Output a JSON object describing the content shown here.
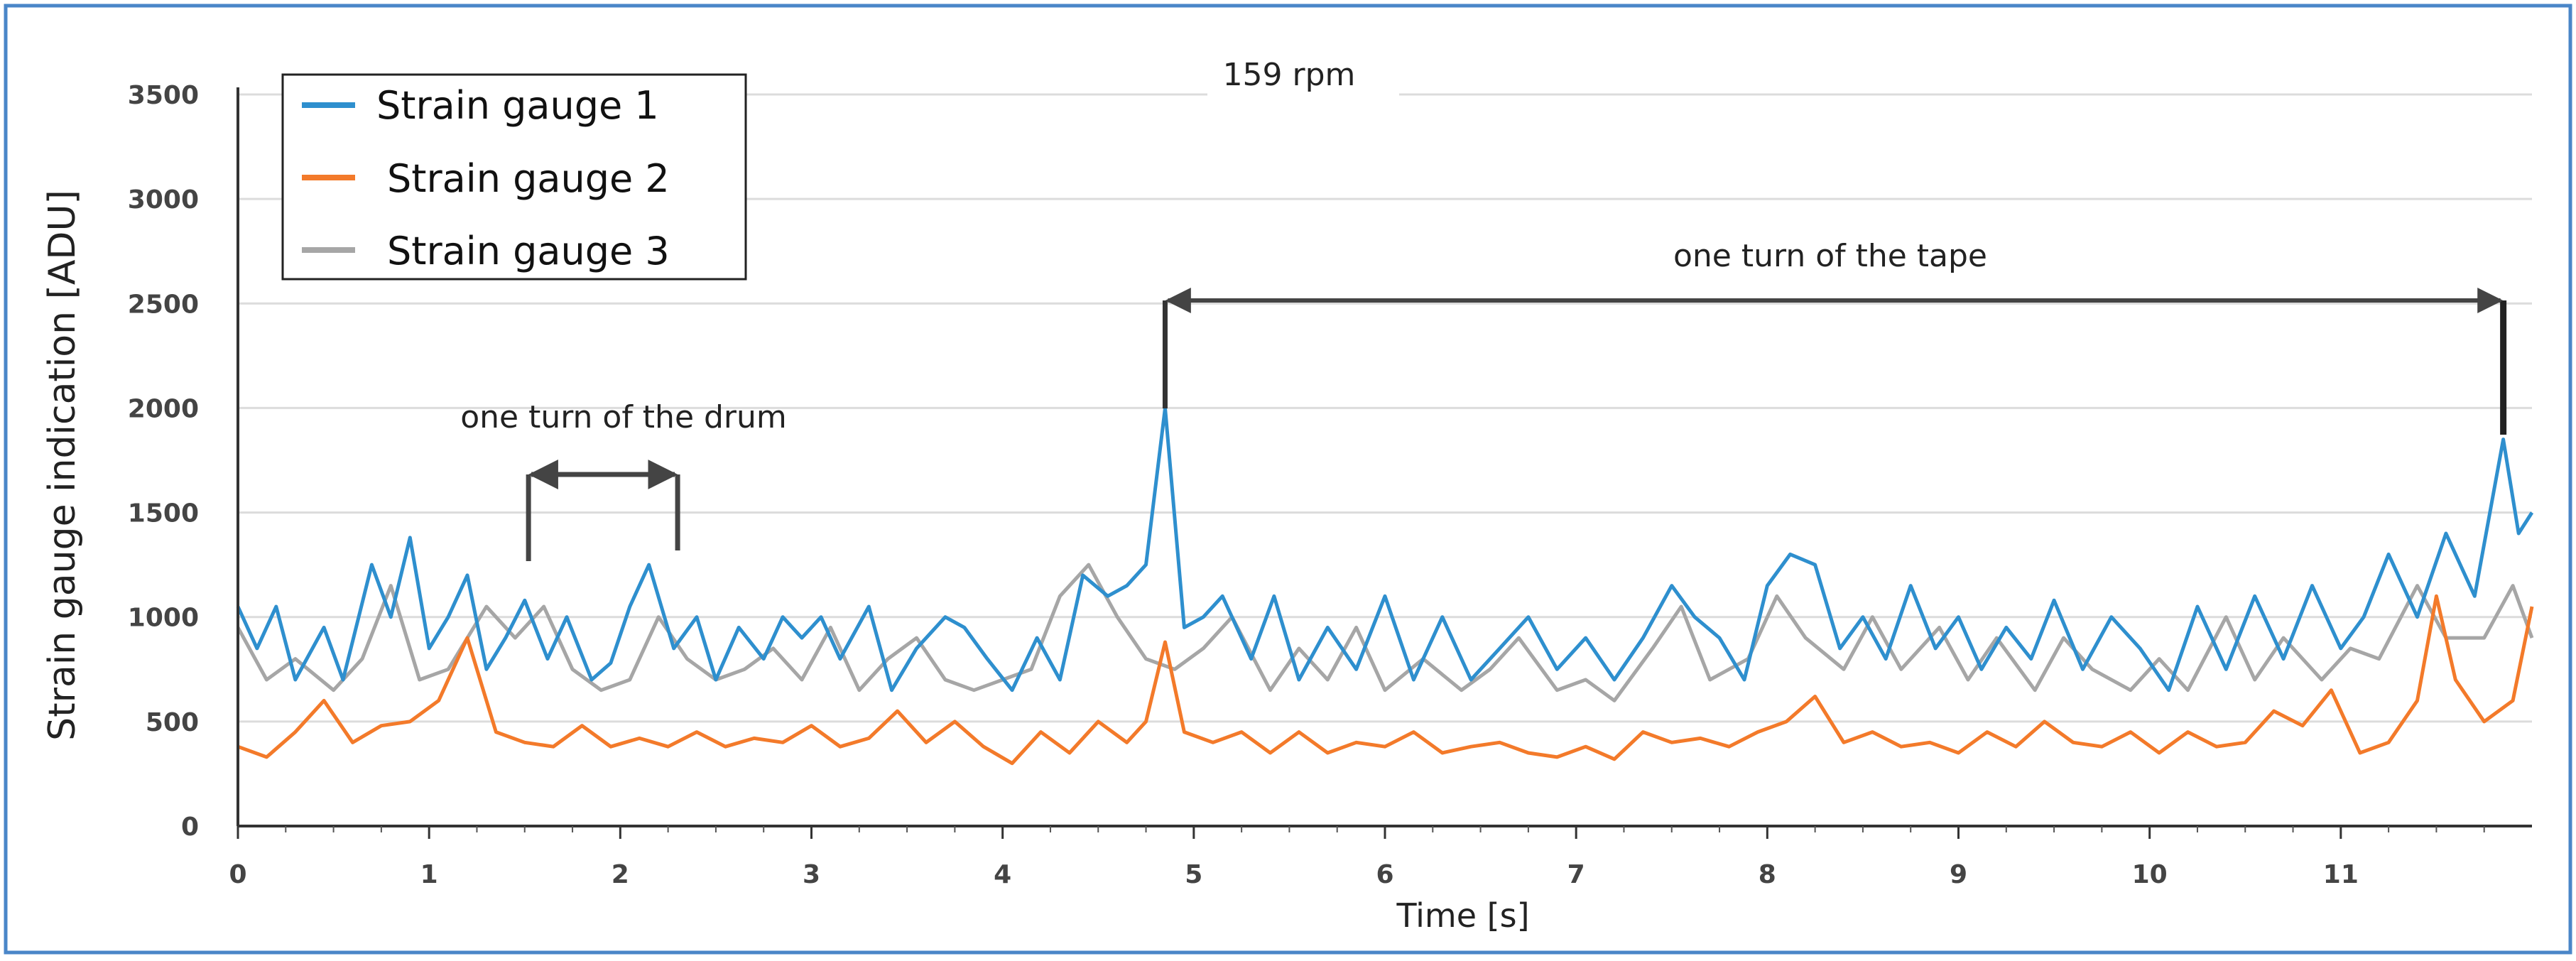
{
  "chart_data": {
    "type": "line",
    "title": "159 rpm",
    "xlabel": "Time [s]",
    "ylabel": "Strain gauge indication [ADU]",
    "xlim": [
      0,
      12
    ],
    "ylim": [
      0,
      3500
    ],
    "xticks": [
      "0",
      "1",
      "2",
      "3",
      "4",
      "5",
      "6",
      "7",
      "8",
      "9",
      "10",
      "11"
    ],
    "yticks": [
      "0",
      "500",
      "1000",
      "1500",
      "2000",
      "2500",
      "3000",
      "3500"
    ],
    "grid": true,
    "legend_position": "top-left",
    "annotations": [
      {
        "text": "one turn of the drum",
        "x_start": 1.52,
        "x_end": 2.3
      },
      {
        "text": "one turn of the tape",
        "x_start": 4.85,
        "x_end": 11.85
      }
    ],
    "series": [
      {
        "name": "Strain gauge 1",
        "color": "#2e8fce",
        "x": [
          0,
          0.1,
          0.2,
          0.3,
          0.45,
          0.55,
          0.7,
          0.8,
          0.9,
          1.0,
          1.1,
          1.2,
          1.3,
          1.4,
          1.5,
          1.62,
          1.72,
          1.85,
          1.95,
          2.05,
          2.15,
          2.28,
          2.4,
          2.5,
          2.62,
          2.75,
          2.85,
          2.95,
          3.05,
          3.15,
          3.3,
          3.42,
          3.55,
          3.7,
          3.8,
          3.92,
          4.05,
          4.18,
          4.3,
          4.42,
          4.55,
          4.65,
          4.75,
          4.85,
          4.95,
          5.05,
          5.15,
          5.3,
          5.42,
          5.55,
          5.7,
          5.85,
          6.0,
          6.15,
          6.3,
          6.45,
          6.6,
          6.75,
          6.9,
          7.05,
          7.2,
          7.35,
          7.5,
          7.62,
          7.75,
          7.88,
          8.0,
          8.12,
          8.25,
          8.38,
          8.5,
          8.62,
          8.75,
          8.88,
          9.0,
          9.12,
          9.25,
          9.38,
          9.5,
          9.65,
          9.8,
          9.95,
          10.1,
          10.25,
          10.4,
          10.55,
          10.7,
          10.85,
          11.0,
          11.12,
          11.25,
          11.4,
          11.55,
          11.7,
          11.85,
          11.93,
          12.0
        ],
        "y": [
          1050,
          850,
          1050,
          700,
          950,
          700,
          1250,
          1000,
          1380,
          850,
          1000,
          1200,
          750,
          900,
          1080,
          800,
          1000,
          700,
          780,
          1050,
          1250,
          850,
          1000,
          700,
          950,
          800,
          1000,
          900,
          1000,
          800,
          1050,
          650,
          850,
          1000,
          950,
          800,
          650,
          900,
          700,
          1200,
          1100,
          1150,
          1250,
          2000,
          950,
          1000,
          1100,
          800,
          1100,
          700,
          950,
          750,
          1100,
          700,
          1000,
          700,
          850,
          1000,
          750,
          900,
          700,
          900,
          1150,
          1000,
          900,
          700,
          1150,
          1300,
          1250,
          850,
          1000,
          800,
          1150,
          850,
          1000,
          750,
          950,
          800,
          1080,
          750,
          1000,
          850,
          650,
          1050,
          750,
          1100,
          800,
          1150,
          850,
          1000,
          1300,
          1000,
          1400,
          1100,
          1850,
          1400,
          1500
        ]
      },
      {
        "name": "Strain gauge 2",
        "color": "#f37a2a",
        "x": [
          0,
          0.15,
          0.3,
          0.45,
          0.6,
          0.75,
          0.9,
          1.05,
          1.2,
          1.35,
          1.5,
          1.65,
          1.8,
          1.95,
          2.1,
          2.25,
          2.4,
          2.55,
          2.7,
          2.85,
          3.0,
          3.15,
          3.3,
          3.45,
          3.6,
          3.75,
          3.9,
          4.05,
          4.2,
          4.35,
          4.5,
          4.65,
          4.75,
          4.85,
          4.95,
          5.1,
          5.25,
          5.4,
          5.55,
          5.7,
          5.85,
          6.0,
          6.15,
          6.3,
          6.45,
          6.6,
          6.75,
          6.9,
          7.05,
          7.2,
          7.35,
          7.5,
          7.65,
          7.8,
          7.95,
          8.1,
          8.25,
          8.4,
          8.55,
          8.7,
          8.85,
          9.0,
          9.15,
          9.3,
          9.45,
          9.6,
          9.75,
          9.9,
          10.05,
          10.2,
          10.35,
          10.5,
          10.65,
          10.8,
          10.95,
          11.1,
          11.25,
          11.4,
          11.5,
          11.6,
          11.75,
          11.9,
          12.0
        ],
        "y": [
          380,
          330,
          450,
          600,
          400,
          480,
          500,
          600,
          900,
          450,
          400,
          380,
          480,
          380,
          420,
          380,
          450,
          380,
          420,
          400,
          480,
          380,
          420,
          550,
          400,
          500,
          380,
          300,
          450,
          350,
          500,
          400,
          500,
          880,
          450,
          400,
          450,
          350,
          450,
          350,
          400,
          380,
          450,
          350,
          380,
          400,
          350,
          330,
          380,
          320,
          450,
          400,
          420,
          380,
          450,
          500,
          620,
          400,
          450,
          380,
          400,
          350,
          450,
          380,
          500,
          400,
          380,
          450,
          350,
          450,
          380,
          400,
          550,
          480,
          650,
          350,
          400,
          600,
          1100,
          700,
          500,
          600,
          1050
        ]
      },
      {
        "name": "Strain gauge 3",
        "color": "#a6a6a6",
        "x": [
          0,
          0.15,
          0.3,
          0.5,
          0.65,
          0.8,
          0.95,
          1.1,
          1.3,
          1.45,
          1.6,
          1.75,
          1.9,
          2.05,
          2.2,
          2.35,
          2.5,
          2.65,
          2.8,
          2.95,
          3.1,
          3.25,
          3.4,
          3.55,
          3.7,
          3.85,
          4.0,
          4.15,
          4.3,
          4.45,
          4.6,
          4.75,
          4.9,
          5.05,
          5.2,
          5.4,
          5.55,
          5.7,
          5.85,
          6.0,
          6.2,
          6.4,
          6.55,
          6.7,
          6.9,
          7.05,
          7.2,
          7.4,
          7.55,
          7.7,
          7.9,
          8.05,
          8.2,
          8.4,
          8.55,
          8.7,
          8.9,
          9.05,
          9.2,
          9.4,
          9.55,
          9.7,
          9.9,
          10.05,
          10.2,
          10.4,
          10.55,
          10.7,
          10.9,
          11.05,
          11.2,
          11.4,
          11.55,
          11.75,
          11.9,
          12.0
        ],
        "y": [
          950,
          700,
          800,
          650,
          800,
          1150,
          700,
          750,
          1050,
          900,
          1050,
          750,
          650,
          700,
          1000,
          800,
          700,
          750,
          850,
          700,
          950,
          650,
          800,
          900,
          700,
          650,
          700,
          750,
          1100,
          1250,
          1000,
          800,
          750,
          850,
          1000,
          650,
          850,
          700,
          950,
          650,
          800,
          650,
          750,
          900,
          650,
          700,
          600,
          850,
          1050,
          700,
          800,
          1100,
          900,
          750,
          1000,
          750,
          950,
          700,
          900,
          650,
          900,
          750,
          650,
          800,
          650,
          1000,
          700,
          900,
          700,
          850,
          800,
          1150,
          900,
          900,
          1150,
          900
        ]
      }
    ]
  }
}
